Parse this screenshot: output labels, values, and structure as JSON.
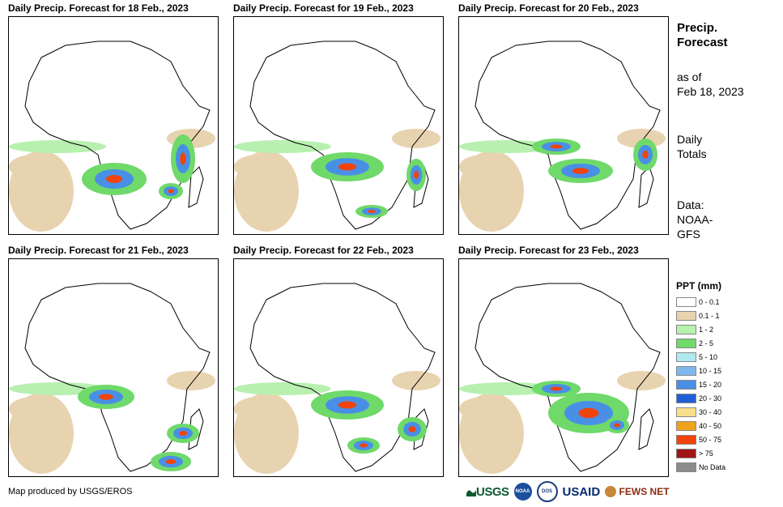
{
  "panels": [
    {
      "title": "Daily Precip. Forecast for 18 Feb., 2023"
    },
    {
      "title": "Daily Precip. Forecast for 19 Feb., 2023"
    },
    {
      "title": "Daily Precip. Forecast for 20 Feb., 2023"
    },
    {
      "title": "Daily Precip. Forecast for 21 Feb., 2023"
    },
    {
      "title": "Daily Precip. Forecast for 22 Feb., 2023"
    },
    {
      "title": "Daily Precip. Forecast for 23 Feb., 2023"
    }
  ],
  "side": {
    "title_line1": "Precip.",
    "title_line2": "Forecast",
    "asof_line1": "as of",
    "asof_line2": "Feb 18, 2023",
    "daily_line1": "Daily",
    "daily_line2": "Totals",
    "data_line1": "Data:",
    "data_line2": "NOAA-",
    "data_line3": "GFS"
  },
  "legend": {
    "title": "PPT (mm)",
    "items": [
      {
        "label": "0 - 0.1",
        "color": "#ffffff"
      },
      {
        "label": "0.1 - 1",
        "color": "#e8d3b0"
      },
      {
        "label": "1 - 2",
        "color": "#b8f0b0"
      },
      {
        "label": "2 - 5",
        "color": "#6fd96a"
      },
      {
        "label": "5 - 10",
        "color": "#aeeaf0"
      },
      {
        "label": "10 - 15",
        "color": "#7fb8f0"
      },
      {
        "label": "15 - 20",
        "color": "#4a8fe6"
      },
      {
        "label": "20 - 30",
        "color": "#1f5fd6"
      },
      {
        "label": "30 - 40",
        "color": "#f8e08a"
      },
      {
        "label": "40 - 50",
        "color": "#f2a21a"
      },
      {
        "label": "50 - 75",
        "color": "#f0440c"
      },
      {
        "label": "> 75",
        "color": "#a01616"
      },
      {
        "label": "No Data",
        "color": "#8c8c8c"
      }
    ]
  },
  "footer": {
    "credit": "Map produced by USGS/EROS",
    "logos": {
      "usgs": "USGS",
      "noaa": "NOAA",
      "dos": "DOS",
      "usaid": "USAID",
      "fews": "FEWS NET"
    }
  }
}
